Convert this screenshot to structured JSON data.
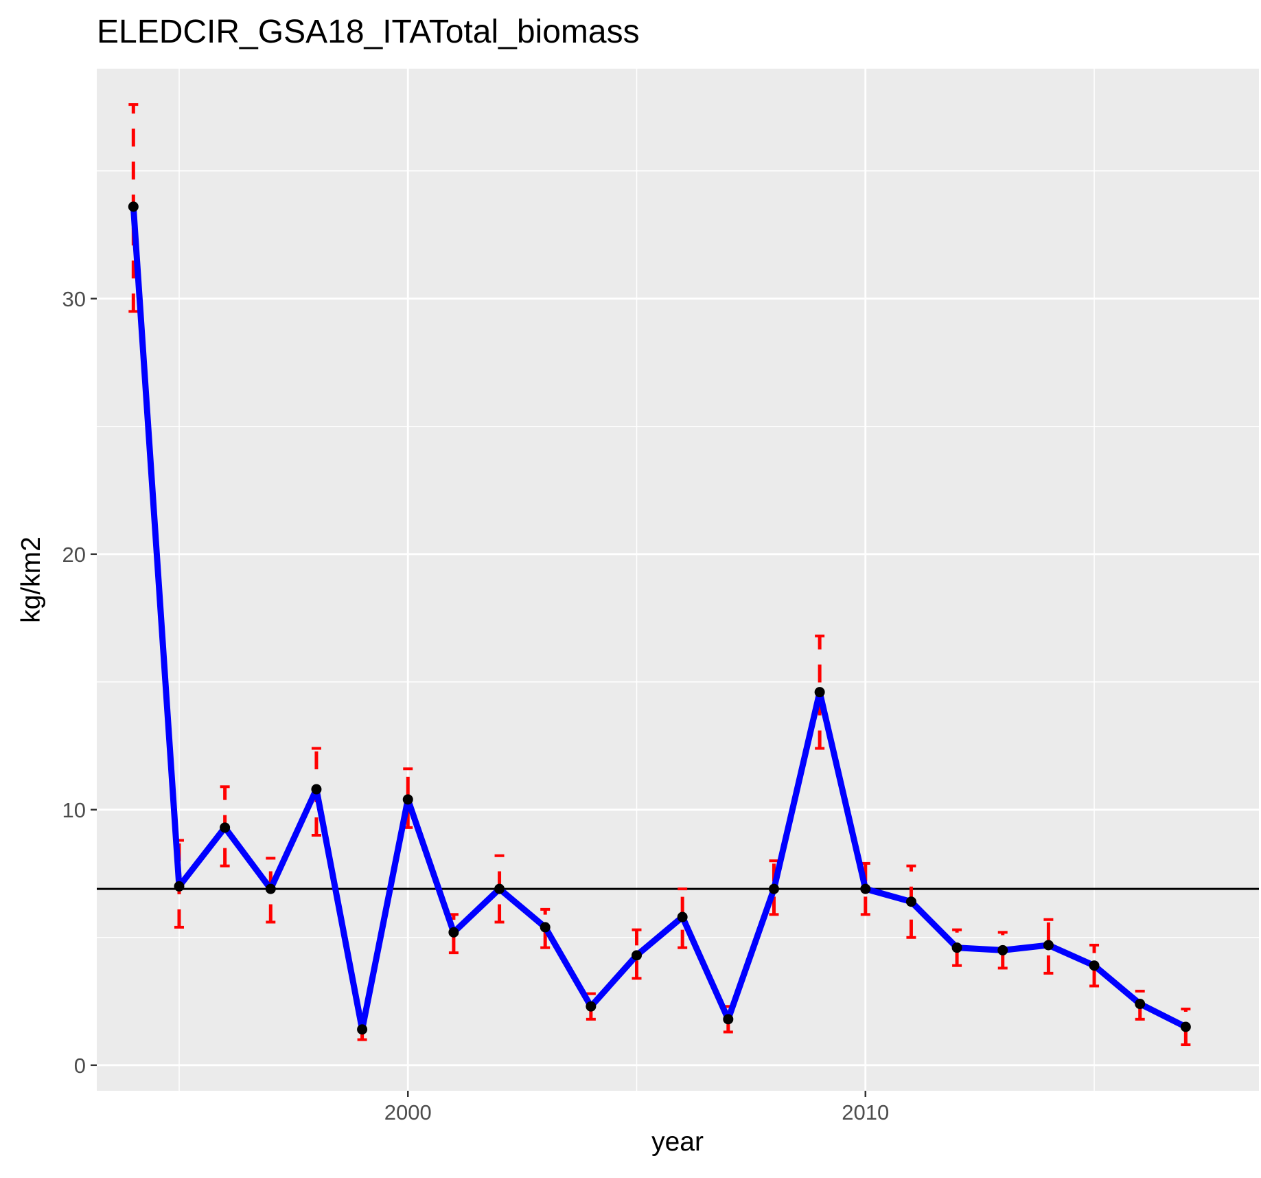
{
  "chart_data": {
    "type": "line",
    "title": "ELEDCIR_GSA18_ITATotal_biomass",
    "xlabel": "year",
    "ylabel": "kg/km2",
    "xlim": [
      1993.2,
      2018.6
    ],
    "ylim": [
      -1.0,
      39.0
    ],
    "x_ticks": [
      2000,
      2010
    ],
    "x_tick_labels": [
      "2000",
      "2010"
    ],
    "x_minor_ticks": [
      1995,
      2005,
      2015
    ],
    "y_ticks": [
      0,
      10,
      20,
      30
    ],
    "y_tick_labels": [
      "0",
      "10",
      "20",
      "30"
    ],
    "y_minor_ticks": [
      5,
      15,
      25,
      35
    ],
    "grid": true,
    "reference_line": 6.9,
    "series": [
      {
        "x": [
          1994,
          1995,
          1996,
          1997,
          1998,
          1999,
          2000,
          2001,
          2002,
          2003,
          2004,
          2005,
          2006,
          2007,
          2008,
          2009,
          2010,
          2011,
          2012,
          2013,
          2014,
          2015,
          2016,
          2017,
          2018
        ],
        "values": [
          33.6,
          7.0,
          9.3,
          6.9,
          10.8,
          1.4,
          10.4,
          5.2,
          6.9,
          5.4,
          2.3,
          4.3,
          5.8,
          1.8,
          6.9,
          14.6,
          6.9,
          6.4,
          4.6,
          4.5,
          4.7,
          3.9,
          2.4,
          1.5,
          null
        ],
        "lower": [
          29.5,
          5.4,
          7.8,
          5.6,
          9.0,
          1.0,
          9.3,
          4.4,
          5.6,
          4.6,
          1.8,
          3.4,
          4.6,
          1.3,
          5.9,
          12.4,
          5.9,
          5.0,
          3.9,
          3.8,
          3.6,
          3.1,
          1.8,
          0.8,
          null
        ],
        "upper": [
          37.6,
          8.8,
          10.9,
          8.1,
          12.4,
          1.8,
          11.6,
          5.9,
          8.2,
          6.1,
          2.8,
          5.3,
          6.9,
          2.3,
          8.0,
          16.8,
          7.9,
          7.8,
          5.3,
          5.2,
          5.7,
          4.7,
          2.9,
          2.2,
          null
        ],
        "line_color": "#0000ff",
        "point_color": "#000000",
        "errorbar_color": "#ff0000"
      }
    ]
  },
  "colors": {
    "panel_bg": "#ebebeb",
    "grid": "#ffffff",
    "reference_line": "#000000",
    "tick": "#333333"
  }
}
